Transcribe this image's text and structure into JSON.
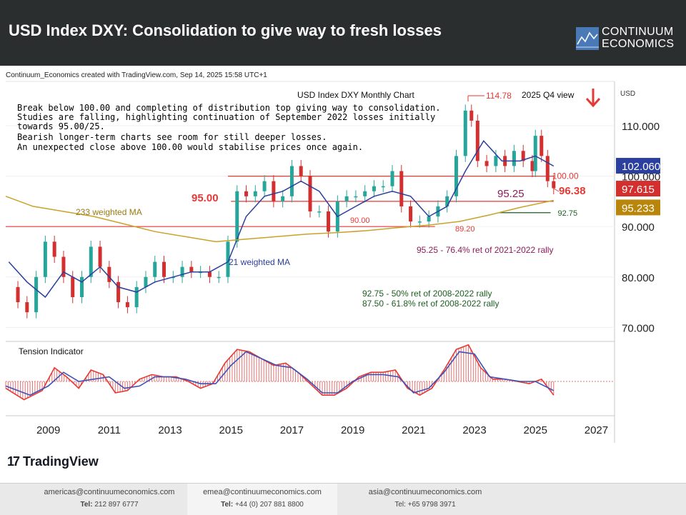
{
  "header": {
    "title": "USD Index DXY: Consolidation to give way to fresh losses",
    "brand_line1": "CONTINUUM",
    "brand_line2": "ECONOMICS"
  },
  "credit": "Continuum_Economics created with TradingView.com, Sep 14, 2025 15:58 UTC+1",
  "chart_data": {
    "type": "line",
    "title": "USD Index DXY Monthly Chart",
    "subtitle": "2025 Q4 view",
    "currency_label": "USD",
    "y_ticks": [
      70,
      80,
      90,
      100,
      110
    ],
    "y_tick_labels": [
      "70.000",
      "80.000",
      "90.000",
      "100.000",
      "110.000"
    ],
    "x_ticks": [
      2009,
      2011,
      2013,
      2015,
      2017,
      2019,
      2021,
      2023,
      2025,
      2027
    ],
    "x_range": [
      2007.6,
      2027.6
    ],
    "y_range": [
      67.5,
      118.5
    ],
    "commentary": [
      "Break below 100.00 and completing of distribution top giving way to consolidation.",
      "Studies are falling, highlighting continuation of September 2022 losses initially",
      "towards 95.00/25.",
      "Bearish longer-term charts see room for still deeper losses.",
      "An unexpected close above 100.00 would stabilise prices once again."
    ],
    "price_badges": [
      {
        "label": "102.060",
        "value": 102.06,
        "color": "#2a3f9e"
      },
      {
        "label": "97.615",
        "value": 97.615,
        "color": "#d32f2f"
      },
      {
        "label": "95.233",
        "value": 95.233,
        "color": "#b8860b"
      }
    ],
    "levels": [
      {
        "value": 100.0,
        "label": "100.00",
        "x0": 2014.9,
        "x1": 2025.6,
        "color": "#e53935"
      },
      {
        "value": 95.0,
        "label": "95.00",
        "x0": 2015.0,
        "x1": 2025.6,
        "color": "#e53935"
      },
      {
        "value": 90.0,
        "label": "90.00",
        "x0": 2007.6,
        "x1": 2021.7,
        "color": "#e53935"
      },
      {
        "value": 92.75,
        "label": "92.75",
        "x0": 2023.8,
        "x1": 2025.5,
        "color": "#1b5e20"
      }
    ],
    "annotations": {
      "high_label": "114.78",
      "high_value": 114.78,
      "low_label": "89.20",
      "low_value": 89.2,
      "target_label": "96.38",
      "fib_95_label": "95.25",
      "label_95": "95.00",
      "label_90": "90.00",
      "wma21_label": "21 weighted MA",
      "ma233_label": "233 weighted MA",
      "fib_note_1": "95.25 - 76.4% ret of 2021-2022 rally",
      "fib_note_2": "92.75 - 50% ret of 2008-2022 rally",
      "fib_note_3": "87.50 - 61.8% ret of 2008-2022 rally"
    },
    "series": [
      {
        "name": "USD Index DXY",
        "type": "price",
        "color": "#2e7d32",
        "x": [
          2007.7,
          2008.0,
          2008.3,
          2008.6,
          2008.9,
          2009.2,
          2009.5,
          2009.8,
          2010.1,
          2010.4,
          2010.7,
          2011.0,
          2011.3,
          2011.6,
          2011.9,
          2012.2,
          2012.5,
          2012.8,
          2013.1,
          2013.4,
          2013.7,
          2014.0,
          2014.3,
          2014.6,
          2014.9,
          2015.2,
          2015.5,
          2015.8,
          2016.1,
          2016.4,
          2016.7,
          2017.0,
          2017.3,
          2017.6,
          2017.9,
          2018.2,
          2018.5,
          2018.8,
          2019.1,
          2019.4,
          2019.7,
          2020.0,
          2020.3,
          2020.6,
          2020.9,
          2021.2,
          2021.5,
          2021.8,
          2022.1,
          2022.4,
          2022.7,
          2022.9,
          2023.1,
          2023.4,
          2023.7,
          2024.0,
          2024.3,
          2024.6,
          2024.9,
          2025.0,
          2025.2,
          2025.4,
          2025.6
        ],
        "y": [
          78,
          75,
          73,
          80,
          87,
          84,
          80,
          76,
          80,
          86,
          82,
          79,
          75,
          74,
          78,
          80,
          83,
          80,
          80,
          82,
          81,
          81,
          80,
          80,
          87,
          97,
          96,
          97,
          99,
          95,
          96,
          102,
          100,
          93,
          93,
          89,
          95,
          96,
          96,
          97,
          98,
          98,
          101,
          94,
          91,
          91,
          92,
          94,
          96,
          104,
          113,
          111,
          103,
          102,
          104,
          102,
          105,
          103,
          101,
          108,
          104,
          99,
          97.6
        ]
      },
      {
        "name": "21 weighted MA",
        "color": "#2a3f9e",
        "x": [
          2007.7,
          2008.3,
          2008.9,
          2009.5,
          2010.1,
          2010.7,
          2011.3,
          2011.9,
          2012.5,
          2013.1,
          2013.7,
          2014.3,
          2014.9,
          2015.5,
          2016.1,
          2016.7,
          2017.3,
          2017.9,
          2018.5,
          2019.1,
          2019.7,
          2020.3,
          2020.9,
          2021.5,
          2022.1,
          2022.7,
          2023.3,
          2023.9,
          2024.5,
          2025.0,
          2025.3,
          2025.6
        ],
        "y": [
          83,
          79,
          76,
          81,
          79,
          82,
          78,
          77,
          79,
          80,
          81,
          81,
          83,
          92,
          96,
          97,
          99,
          97,
          92,
          94,
          96,
          97,
          96,
          92,
          94,
          101,
          107,
          103,
          103,
          104,
          103,
          102
        ]
      },
      {
        "name": "233 weighted MA",
        "color": "#c9a227",
        "x": [
          2007.6,
          2008.5,
          2009.5,
          2010.5,
          2011.5,
          2012.5,
          2013.5,
          2014.5,
          2015.5,
          2016.5,
          2017.5,
          2018.5,
          2019.5,
          2020.5,
          2021.5,
          2022.5,
          2023.5,
          2024.5,
          2025.6
        ],
        "y": [
          96,
          94,
          93,
          92,
          90.5,
          89,
          88,
          87,
          87.5,
          88,
          88.5,
          88.8,
          89.2,
          89.8,
          90.3,
          91,
          92.3,
          93.8,
          95.2
        ]
      }
    ],
    "tension_indicator": {
      "title": "Tension Indicator",
      "x": [
        2007.6,
        2008.2,
        2008.8,
        2009.2,
        2009.6,
        2010.0,
        2010.4,
        2010.8,
        2011.2,
        2011.6,
        2012.0,
        2012.4,
        2012.8,
        2013.2,
        2013.6,
        2014.0,
        2014.4,
        2014.8,
        2015.2,
        2015.6,
        2016.0,
        2016.4,
        2016.8,
        2017.2,
        2017.6,
        2018.0,
        2018.4,
        2018.8,
        2019.2,
        2019.6,
        2020.0,
        2020.4,
        2020.8,
        2021.2,
        2021.6,
        2022.0,
        2022.4,
        2022.8,
        2023.2,
        2023.6,
        2024.0,
        2024.4,
        2024.8,
        2025.2,
        2025.6
      ],
      "y": [
        -0.3,
        -0.8,
        -0.4,
        0.6,
        0.2,
        -0.3,
        0.5,
        0.3,
        -0.5,
        -0.4,
        0.1,
        0.3,
        0.2,
        0.2,
        0.0,
        -0.3,
        -0.1,
        0.8,
        1.4,
        1.3,
        1.0,
        0.7,
        0.8,
        0.4,
        -0.1,
        -0.6,
        -0.6,
        -0.3,
        0.2,
        0.4,
        0.4,
        0.5,
        -0.3,
        -0.6,
        -0.3,
        0.5,
        1.4,
        1.6,
        0.6,
        0.1,
        0.1,
        0.0,
        -0.1,
        0.1,
        -0.6
      ],
      "signal_x": [
        2007.6,
        2008.4,
        2009.0,
        2009.5,
        2010.0,
        2010.5,
        2011.0,
        2011.5,
        2012.0,
        2012.5,
        2013.0,
        2013.5,
        2014.0,
        2014.5,
        2015.0,
        2015.5,
        2016.0,
        2016.5,
        2017.0,
        2017.5,
        2018.0,
        2018.5,
        2019.0,
        2019.5,
        2020.0,
        2020.5,
        2021.0,
        2021.5,
        2022.0,
        2022.5,
        2023.0,
        2023.5,
        2024.0,
        2024.5,
        2025.0,
        2025.6
      ],
      "signal_y": [
        -0.2,
        -0.6,
        -0.2,
        0.4,
        0.0,
        0.1,
        0.2,
        -0.3,
        -0.2,
        0.2,
        0.2,
        0.1,
        -0.1,
        -0.1,
        0.7,
        1.3,
        1.0,
        0.7,
        0.6,
        0.1,
        -0.5,
        -0.5,
        0.0,
        0.3,
        0.3,
        0.2,
        -0.5,
        -0.3,
        0.4,
        1.3,
        1.2,
        0.2,
        0.1,
        0.0,
        0.0,
        -0.4
      ]
    }
  },
  "tradingview_label": "TradingView",
  "footer": [
    {
      "email": "americas@continuumeconomics.com",
      "tel_label": "Tel:",
      "tel": "212 897 6777"
    },
    {
      "email": "emea@continuumeconomics.com",
      "tel_label": "Tel:",
      "tel": "+44 (0) 207 881 8800"
    },
    {
      "email": "asia@continuumeconomics.com",
      "tel_label": "Tel:",
      "tel": "+65 9798 3971"
    }
  ]
}
